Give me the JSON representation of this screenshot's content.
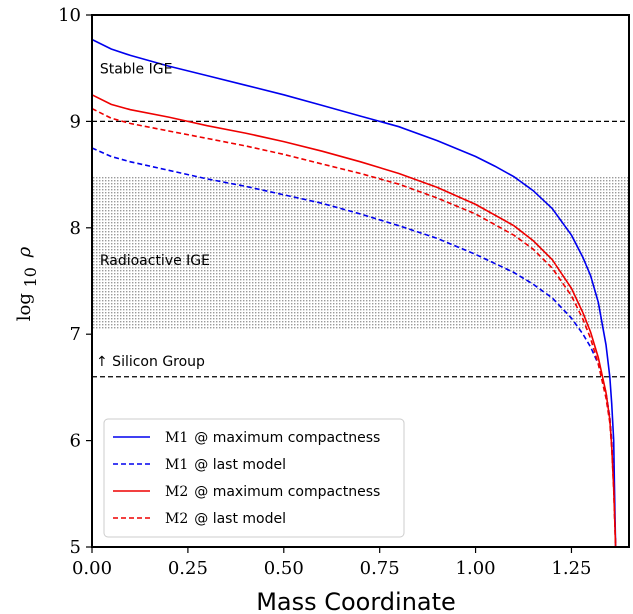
{
  "chart_data": {
    "type": "line",
    "xlabel": "Mass Coordinate",
    "ylabel": "log10 ρ",
    "ylabel_parts": {
      "base": "log",
      "sub": "10",
      "symbol": "ρ"
    },
    "xlim": [
      0,
      1.4
    ],
    "ylim": [
      5,
      10
    ],
    "xticks": [
      0.0,
      0.25,
      0.5,
      0.75,
      1.0,
      1.25
    ],
    "xtick_labels": [
      "0.00",
      "0.25",
      "0.50",
      "0.75",
      "1.00",
      "1.25"
    ],
    "yticks": [
      5,
      6,
      7,
      8,
      9,
      10
    ],
    "ytick_labels": [
      "5",
      "6",
      "7",
      "8",
      "9",
      "10"
    ],
    "grid": false,
    "legend_position": "bottom-left",
    "regions": [
      {
        "label": "Radioactive IGE",
        "y_range": [
          7.05,
          8.48
        ],
        "fill": "#d6d6d6"
      }
    ],
    "hlines": [
      {
        "y": 9.0,
        "style": "dashed",
        "color": "#000000"
      },
      {
        "y": 6.6,
        "style": "dashed",
        "color": "#000000"
      }
    ],
    "annotations": [
      {
        "text": "Stable IGE",
        "x": 0.01,
        "y": 9.45
      },
      {
        "text": "Radioactive IGE",
        "x": 0.01,
        "y": 7.65
      },
      {
        "text": "↑ Silicon Group",
        "x": 0.0,
        "y": 6.7
      }
    ],
    "series": [
      {
        "name": "M1 @ maximum compactness",
        "legend_model": "M1",
        "legend_text": "@ maximum compactness",
        "color": "#0000ee",
        "style": "solid",
        "x": [
          0,
          0.05,
          0.1,
          0.2,
          0.3,
          0.4,
          0.5,
          0.6,
          0.7,
          0.75,
          0.8,
          0.9,
          1.0,
          1.05,
          1.1,
          1.15,
          1.2,
          1.25,
          1.28,
          1.3,
          1.32,
          1.34,
          1.35,
          1.355,
          1.36,
          1.362,
          1.365
        ],
        "y": [
          9.77,
          9.68,
          9.62,
          9.52,
          9.43,
          9.34,
          9.25,
          9.15,
          9.05,
          9.0,
          8.95,
          8.82,
          8.67,
          8.58,
          8.48,
          8.35,
          8.18,
          7.93,
          7.72,
          7.55,
          7.3,
          6.9,
          6.6,
          6.35,
          6.0,
          5.6,
          5.0
        ]
      },
      {
        "name": "M1 @ last model",
        "legend_model": "M1",
        "legend_text": "@ last model",
        "color": "#0000ee",
        "style": "dashed",
        "x": [
          0,
          0.05,
          0.1,
          0.2,
          0.3,
          0.4,
          0.5,
          0.6,
          0.7,
          0.8,
          0.9,
          1.0,
          1.1,
          1.15,
          1.2,
          1.25,
          1.28,
          1.3,
          1.32,
          1.34,
          1.35,
          1.355,
          1.36,
          1.365
        ],
        "y": [
          8.75,
          8.67,
          8.62,
          8.54,
          8.46,
          8.39,
          8.31,
          8.23,
          8.13,
          8.02,
          7.9,
          7.75,
          7.58,
          7.47,
          7.34,
          7.15,
          7.0,
          6.88,
          6.72,
          6.45,
          6.22,
          6.0,
          5.6,
          5.0
        ]
      },
      {
        "name": "M2 @ maximum compactness",
        "legend_model": "M2",
        "legend_text": "@ maximum compactness",
        "color": "#ee0000",
        "style": "solid",
        "x": [
          0,
          0.05,
          0.1,
          0.2,
          0.25,
          0.3,
          0.4,
          0.5,
          0.6,
          0.7,
          0.8,
          0.9,
          1.0,
          1.1,
          1.15,
          1.2,
          1.25,
          1.28,
          1.3,
          1.32,
          1.34,
          1.35,
          1.355,
          1.36,
          1.365
        ],
        "y": [
          9.25,
          9.16,
          9.11,
          9.04,
          9.0,
          8.96,
          8.89,
          8.81,
          8.72,
          8.62,
          8.51,
          8.38,
          8.22,
          8.02,
          7.88,
          7.7,
          7.43,
          7.2,
          7.02,
          6.78,
          6.45,
          6.2,
          5.95,
          5.55,
          5.0
        ]
      },
      {
        "name": "M2 @ last model",
        "legend_model": "M2",
        "legend_text": "@ last model",
        "color": "#ee0000",
        "style": "dashed",
        "x": [
          0,
          0.05,
          0.1,
          0.2,
          0.3,
          0.4,
          0.5,
          0.6,
          0.7,
          0.8,
          0.9,
          1.0,
          1.1,
          1.15,
          1.2,
          1.25,
          1.28,
          1.3,
          1.32,
          1.34,
          1.35,
          1.355,
          1.36,
          1.365
        ],
        "y": [
          9.12,
          9.03,
          8.98,
          8.91,
          8.84,
          8.77,
          8.69,
          8.6,
          8.51,
          8.41,
          8.28,
          8.13,
          7.93,
          7.8,
          7.62,
          7.36,
          7.14,
          6.96,
          6.72,
          6.4,
          6.17,
          5.93,
          5.55,
          5.0
        ]
      }
    ]
  }
}
